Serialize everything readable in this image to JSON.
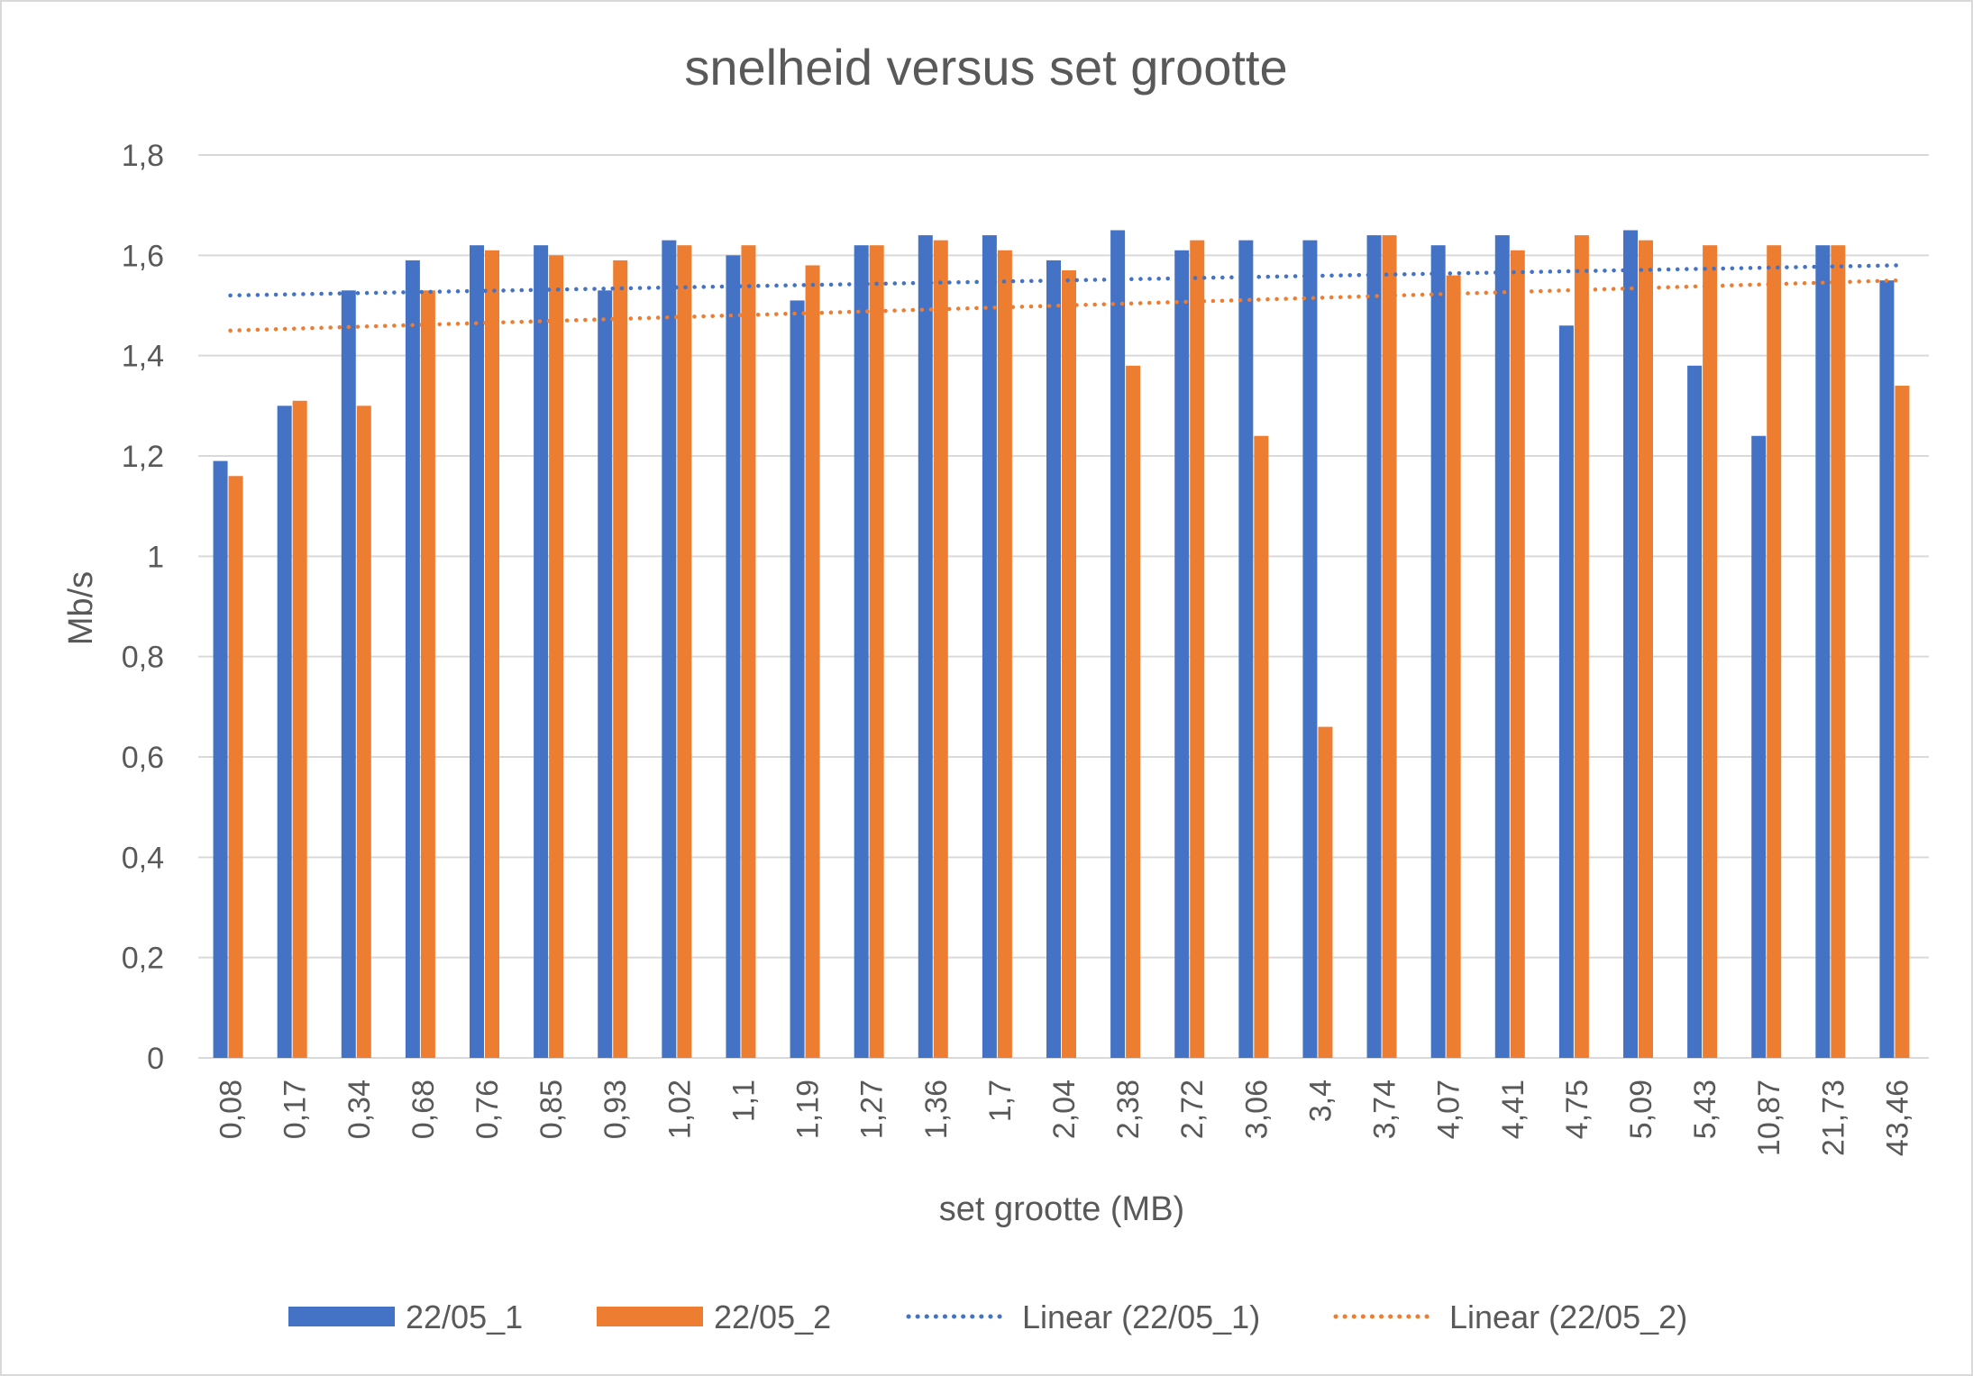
{
  "chart_data": {
    "type": "bar",
    "title": "snelheid versus set grootte",
    "xlabel": "set grootte (MB)",
    "ylabel": "Mb/s",
    "ylim": [
      0,
      1.8
    ],
    "y_ticks": [
      "0",
      "0,2",
      "0,4",
      "0,6",
      "0,8",
      "1",
      "1,2",
      "1,4",
      "1,6",
      "1,8"
    ],
    "grid": true,
    "legend_position": "bottom",
    "categories": [
      "0,08",
      "0,17",
      "0,34",
      "0,68",
      "0,76",
      "0,85",
      "0,93",
      "1,02",
      "1,1",
      "1,19",
      "1,27",
      "1,36",
      "1,7",
      "2,04",
      "2,38",
      "2,72",
      "3,06",
      "3,4",
      "3,74",
      "4,07",
      "4,41",
      "4,75",
      "5,09",
      "5,43",
      "10,87",
      "21,73",
      "43,46"
    ],
    "series": [
      {
        "name": "22/05_1",
        "color": "#4472c4",
        "values": [
          1.19,
          1.3,
          1.53,
          1.59,
          1.62,
          1.62,
          1.53,
          1.63,
          1.6,
          1.51,
          1.62,
          1.64,
          1.64,
          1.59,
          1.65,
          1.61,
          1.63,
          1.63,
          1.64,
          1.62,
          1.64,
          1.46,
          1.65,
          1.38,
          1.24,
          1.62,
          1.55
        ]
      },
      {
        "name": "22/05_2",
        "color": "#ed7d31",
        "values": [
          1.16,
          1.31,
          1.3,
          1.53,
          1.61,
          1.6,
          1.59,
          1.62,
          1.62,
          1.58,
          1.62,
          1.63,
          1.61,
          1.57,
          1.38,
          1.63,
          1.24,
          0.66,
          1.64,
          1.56,
          1.61,
          1.64,
          1.63,
          1.62,
          1.62,
          1.62,
          1.34
        ]
      }
    ],
    "trendlines": [
      {
        "name": "Linear (22/05_1)",
        "series": "22/05_1",
        "color": "#4472c4",
        "style": "dotted",
        "start": 1.52,
        "end": 1.58
      },
      {
        "name": "Linear (22/05_2)",
        "series": "22/05_2",
        "color": "#ed7d31",
        "style": "dotted",
        "start": 1.45,
        "end": 1.55
      }
    ]
  }
}
